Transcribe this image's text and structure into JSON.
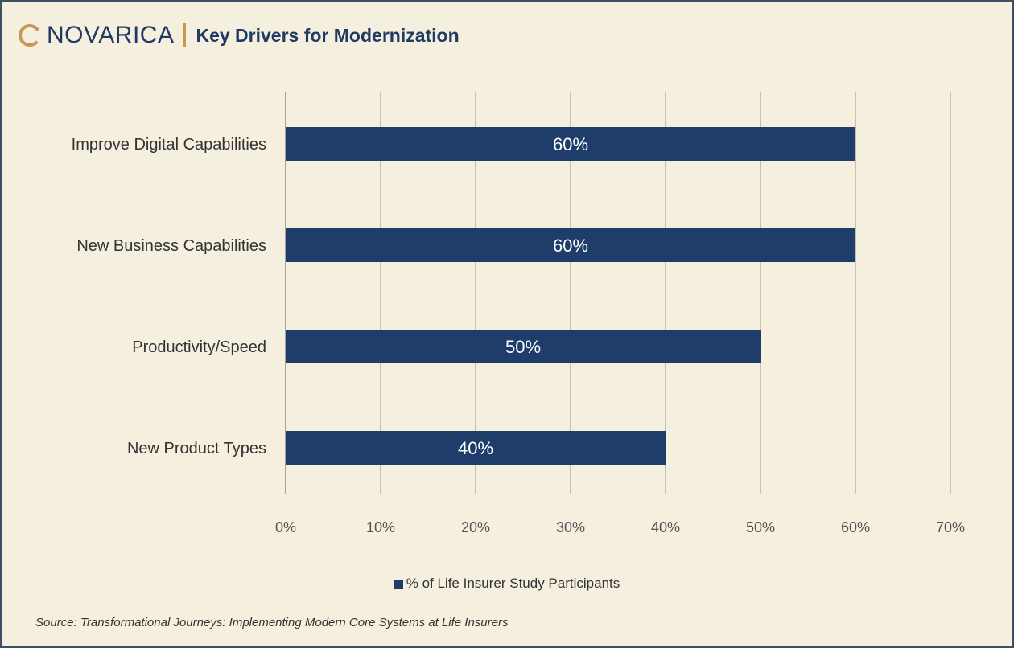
{
  "brand": {
    "logo_text": "NOVARICA",
    "header_title": "Key Drivers for Modernization",
    "accent_color": "#c49a52",
    "brand_color": "#1f3a63"
  },
  "chart_data": {
    "type": "bar",
    "orientation": "horizontal",
    "categories": [
      "Improve Digital Capabilities",
      "New Business Capabilities",
      "Productivity/Speed",
      "New Product Types"
    ],
    "series": [
      {
        "name": "% of Life Insurer Study Participants",
        "values": [
          60,
          60,
          50,
          40
        ],
        "data_labels": [
          "60%",
          "60%",
          "50%",
          "40%"
        ],
        "color": "#1f3d6b"
      }
    ],
    "x_ticks": [
      0,
      10,
      20,
      30,
      40,
      50,
      60,
      70
    ],
    "x_tick_labels": [
      "0%",
      "10%",
      "20%",
      "30%",
      "40%",
      "50%",
      "60%",
      "70%"
    ],
    "xlim": [
      0,
      70
    ],
    "grid": "vertical",
    "legend_position": "bottom"
  },
  "source_note": "Source: Transformational Journeys: Implementing Modern Core Systems at Life Insurers"
}
